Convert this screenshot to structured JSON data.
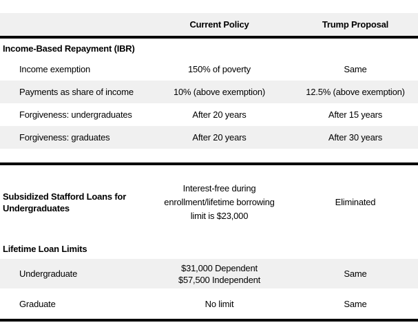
{
  "header": {
    "current": "Current Policy",
    "proposal": "Trump Proposal"
  },
  "sections": [
    {
      "title": "Income-Based Repayment (IBR)",
      "rows": [
        {
          "label": "Income exemption",
          "current": "150% of poverty",
          "proposal": "Same"
        },
        {
          "label": "Payments as share of income",
          "current": "10% (above exemption)",
          "proposal": "12.5% (above exemption)"
        },
        {
          "label": "Forgiveness: undergraduates",
          "current": "After 20 years",
          "proposal": "After 15 years"
        },
        {
          "label": "Forgiveness: graduates",
          "current": "After 20 years",
          "proposal": "After 30 years"
        }
      ]
    },
    {
      "title": "Subsidized Stafford Loans for Undergraduates",
      "title_lines": [
        "Subsidized Stafford Loans for",
        "Undergraduates"
      ],
      "current_lines": [
        "Interest-free during",
        "enrollment/lifetime borrowing",
        "limit is $23,000"
      ],
      "proposal": "Eliminated"
    },
    {
      "title": "Lifetime Loan Limits",
      "rows": [
        {
          "label": "Undergraduate",
          "current_lines": [
            "$31,000 Dependent",
            "$57,500 Independent"
          ],
          "proposal": "Same"
        },
        {
          "label": "Graduate",
          "current": "No limit",
          "proposal": "Same"
        }
      ]
    }
  ],
  "colors": {
    "stripe": "#f0f0f0",
    "divider": "#000000",
    "text": "#000000"
  }
}
